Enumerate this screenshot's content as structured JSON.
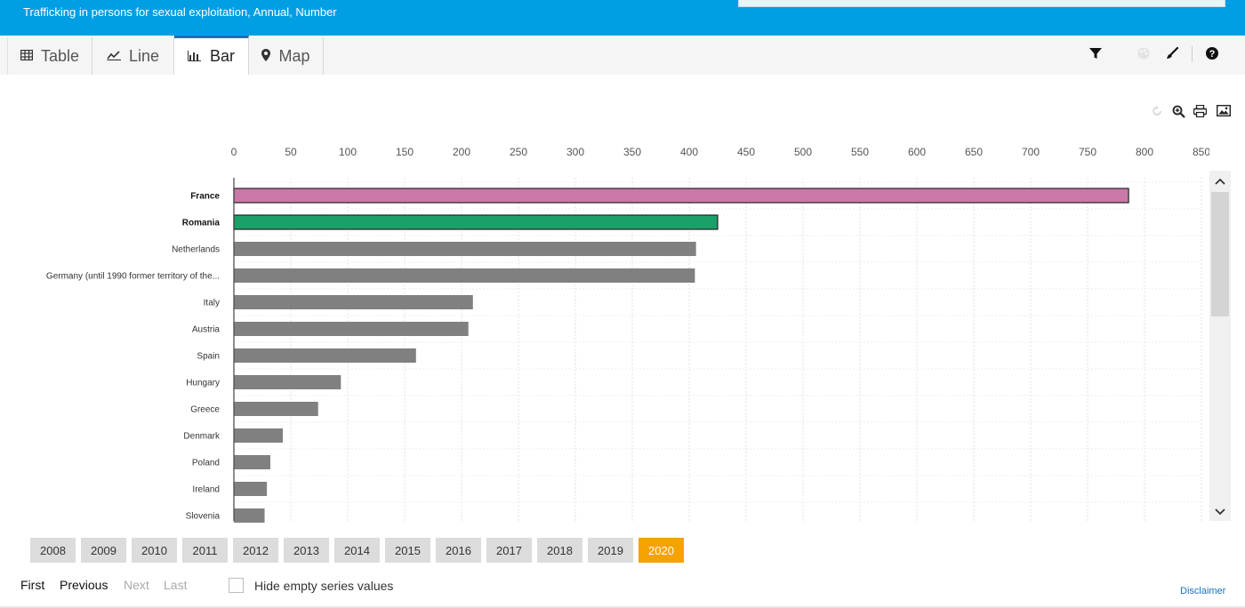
{
  "header": {
    "title": "Trafficking in persons for sexual exploitation, Annual, Number"
  },
  "tabs": [
    {
      "label": "Table",
      "icon": "table-icon"
    },
    {
      "label": "Line",
      "icon": "line-chart-icon"
    },
    {
      "label": "Bar",
      "icon": "bar-chart-icon",
      "active": true
    },
    {
      "label": "Map",
      "icon": "map-marker-icon"
    }
  ],
  "toolbar_icons": [
    "filter-icon",
    "palette-icon",
    "brush-icon",
    "help-icon"
  ],
  "chart_tools": [
    "reset-icon",
    "zoom-icon",
    "print-icon",
    "image-export-icon"
  ],
  "chart_data": {
    "type": "bar",
    "orientation": "horizontal",
    "xlim": [
      0,
      850
    ],
    "ticks": [
      0,
      50,
      100,
      150,
      200,
      250,
      300,
      350,
      400,
      450,
      500,
      550,
      600,
      650,
      700,
      750,
      800,
      850
    ],
    "grid": true,
    "categories": [
      "France",
      "Romania",
      "Netherlands",
      "Germany (until 1990 former territory of the...",
      "Italy",
      "Austria",
      "Spain",
      "Hungary",
      "Greece",
      "Denmark",
      "Poland",
      "Ireland",
      "Slovenia"
    ],
    "values": [
      786,
      425,
      406,
      405,
      210,
      206,
      160,
      94,
      74,
      43,
      32,
      29,
      27
    ],
    "highlighted": [
      "France",
      "Romania"
    ],
    "colors": {
      "France": "#c978a8",
      "Romania": "#1aa068",
      "default": "#808080"
    }
  },
  "years": {
    "options": [
      "2008",
      "2009",
      "2010",
      "2011",
      "2012",
      "2013",
      "2014",
      "2015",
      "2016",
      "2017",
      "2018",
      "2019",
      "2020"
    ],
    "selected": "2020"
  },
  "pager": {
    "first": "First",
    "previous": "Previous",
    "next": "Next",
    "last": "Last"
  },
  "hide_empty_label": "Hide empty series values",
  "disclaimer": "Disclaimer"
}
